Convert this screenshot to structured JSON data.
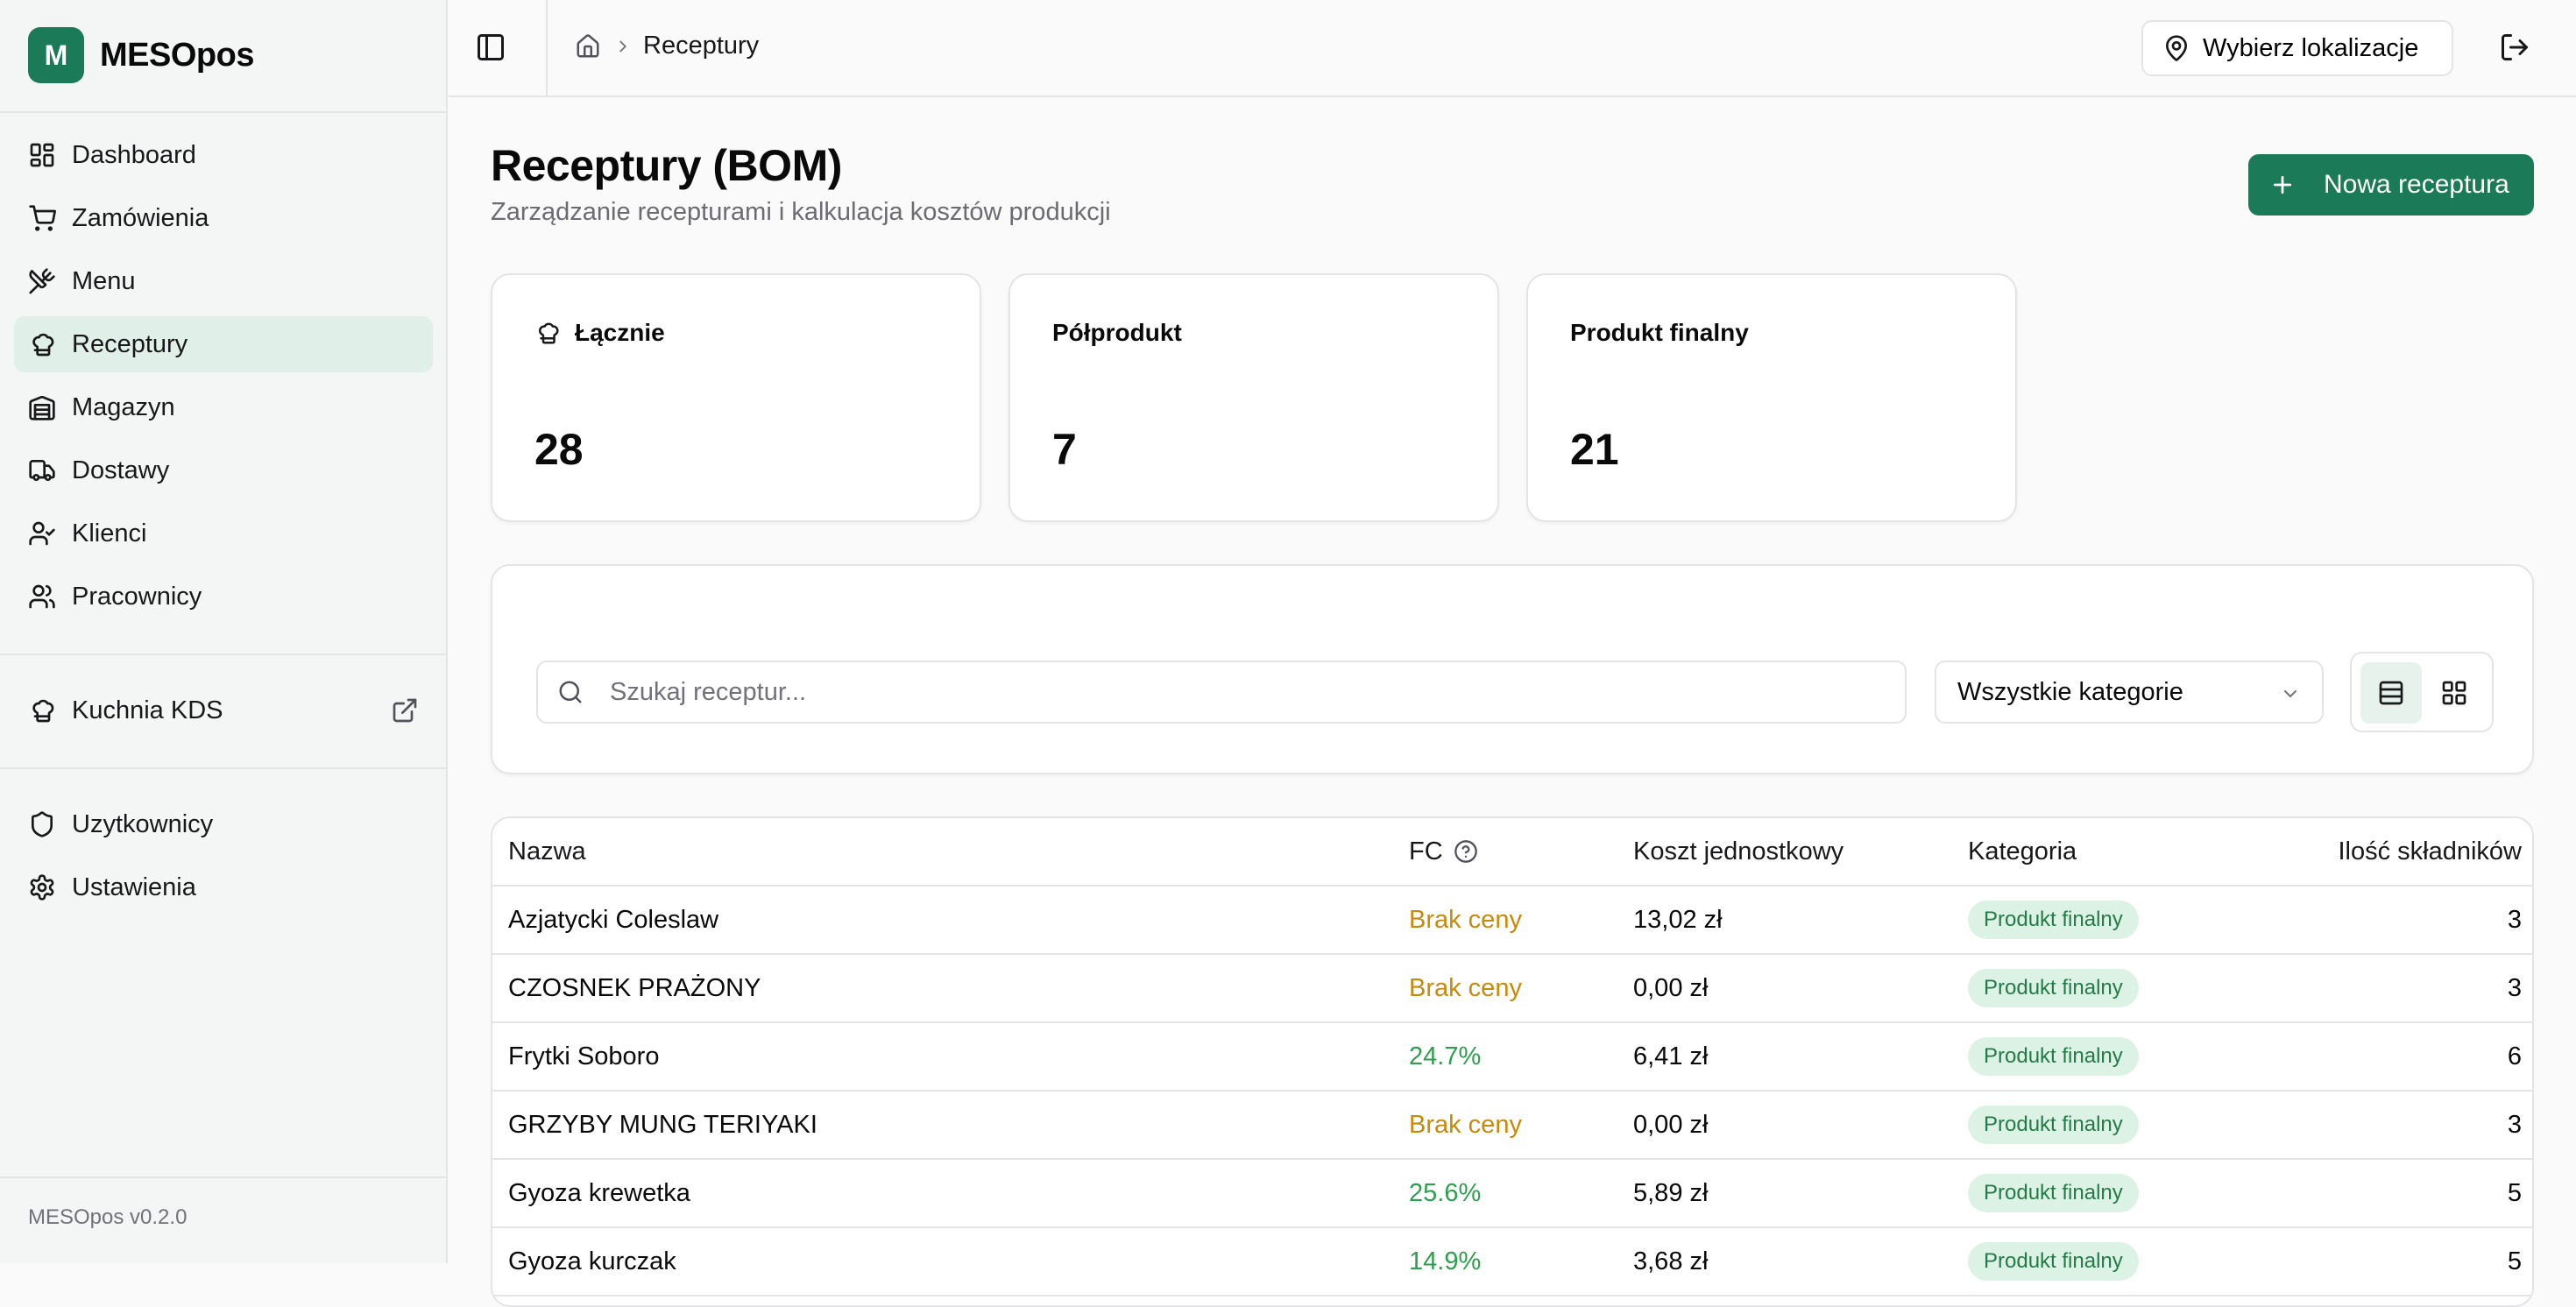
{
  "app": {
    "logo_letter": "M",
    "name": "MESOpos",
    "version": "MESOpos v0.2.0"
  },
  "sidebar": {
    "items": [
      {
        "label": "Dashboard",
        "icon": "grid-icon"
      },
      {
        "label": "Zamówienia",
        "icon": "cart-icon"
      },
      {
        "label": "Menu",
        "icon": "utensils-icon"
      },
      {
        "label": "Receptury",
        "icon": "chef-hat-icon",
        "active": true
      },
      {
        "label": "Magazyn",
        "icon": "warehouse-icon"
      },
      {
        "label": "Dostawy",
        "icon": "truck-icon"
      },
      {
        "label": "Klienci",
        "icon": "user-check-icon"
      },
      {
        "label": "Pracownicy",
        "icon": "users-icon"
      }
    ],
    "kds": {
      "label": "Kuchnia KDS",
      "icon": "chef-hat-icon",
      "external_icon": "external-link-icon"
    },
    "admin": [
      {
        "label": "Uzytkownicy",
        "icon": "shield-icon"
      },
      {
        "label": "Ustawienia",
        "icon": "gear-icon"
      }
    ]
  },
  "topbar": {
    "breadcrumb_current": "Receptury",
    "location_button": "Wybierz lokalizacje"
  },
  "page": {
    "title": "Receptury (BOM)",
    "subtitle": "Zarządzanie recepturami i kalkulacja kosztów produkcji",
    "new_button": "Nowa receptura"
  },
  "stats": [
    {
      "label": "Łącznie",
      "value": "28"
    },
    {
      "label": "Półprodukt",
      "value": "7"
    },
    {
      "label": "Produkt finalny",
      "value": "21"
    }
  ],
  "filters": {
    "search_placeholder": "Szukaj receptur...",
    "category_selected": "Wszystkie kategorie"
  },
  "table": {
    "columns": [
      "Nazwa",
      "FC",
      "Koszt jednostkowy",
      "Kategoria",
      "Ilość składników"
    ],
    "rows": [
      {
        "name": "Azjatycki Coleslaw",
        "fc": "Brak ceny",
        "fc_status": "warn",
        "cost": "13,02 zł",
        "category": "Produkt finalny",
        "count": "3"
      },
      {
        "name": "CZOSNEK PRAŻONY",
        "fc": "Brak ceny",
        "fc_status": "warn",
        "cost": "0,00 zł",
        "category": "Produkt finalny",
        "count": "3"
      },
      {
        "name": "Frytki Soboro",
        "fc": "24.7%",
        "fc_status": "ok",
        "cost": "6,41 zł",
        "category": "Produkt finalny",
        "count": "6"
      },
      {
        "name": "GRZYBY MUNG TERIYAKI",
        "fc": "Brak ceny",
        "fc_status": "warn",
        "cost": "0,00 zł",
        "category": "Produkt finalny",
        "count": "3"
      },
      {
        "name": "Gyoza krewetka",
        "fc": "25.6%",
        "fc_status": "ok",
        "cost": "5,89 zł",
        "category": "Produkt finalny",
        "count": "5"
      },
      {
        "name": "Gyoza kurczak",
        "fc": "14.9%",
        "fc_status": "ok",
        "cost": "3,68 zł",
        "category": "Produkt finalny",
        "count": "5"
      }
    ]
  },
  "colors": {
    "brand": "#1b7a57",
    "warn": "#c78a0a",
    "ok": "#2e9e4f",
    "badge_bg": "#dcf2e4"
  }
}
